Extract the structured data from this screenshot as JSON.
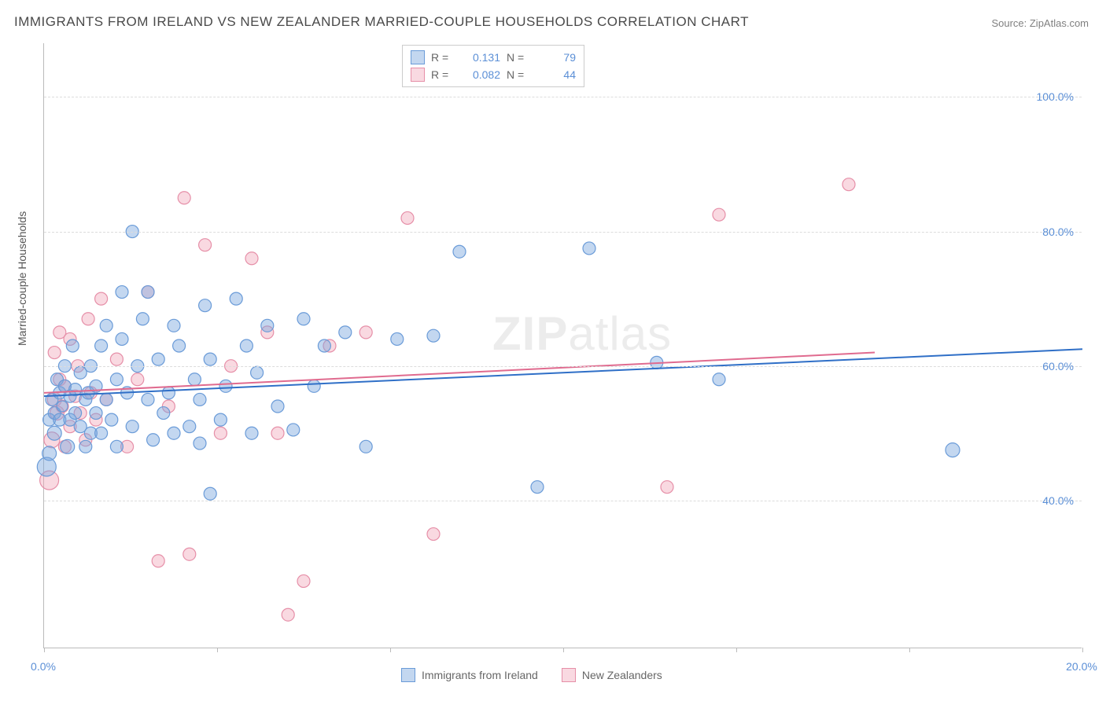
{
  "title": "IMMIGRANTS FROM IRELAND VS NEW ZEALANDER MARRIED-COUPLE HOUSEHOLDS CORRELATION CHART",
  "source": "Source: ZipAtlas.com",
  "watermark_bold": "ZIP",
  "watermark_light": "atlas",
  "y_axis_title": "Married-couple Households",
  "chart": {
    "type": "scatter",
    "xlim": [
      0,
      20
    ],
    "ylim": [
      18,
      108
    ],
    "x_ticks": [
      0,
      3.33,
      6.67,
      10,
      13.33,
      16.67,
      20
    ],
    "x_tick_labels": [
      "0.0%",
      "",
      "",
      "",
      "",
      "",
      "20.0%"
    ],
    "y_ticks": [
      40,
      60,
      80,
      100
    ],
    "y_tick_labels": [
      "40.0%",
      "60.0%",
      "80.0%",
      "100.0%"
    ],
    "grid_color": "#dcdcdc",
    "axis_color": "#bbbbbb",
    "background_color": "#ffffff"
  },
  "series": [
    {
      "name": "Immigrants from Ireland",
      "fill": "rgba(123,167,222,0.45)",
      "stroke": "#6a9bd8",
      "line_stroke": "#2f6fc7",
      "r_value": "0.131",
      "n_value": "79",
      "trend": {
        "x1": 0,
        "y1": 55.5,
        "x2": 20,
        "y2": 62.5
      },
      "points": [
        [
          0.05,
          45.0,
          12
        ],
        [
          0.1,
          47.0,
          9
        ],
        [
          0.1,
          52.0,
          8
        ],
        [
          0.15,
          55.0,
          8
        ],
        [
          0.2,
          53.0,
          8
        ],
        [
          0.2,
          50.0,
          9
        ],
        [
          0.25,
          58.0,
          8
        ],
        [
          0.3,
          52.0,
          8
        ],
        [
          0.3,
          56.0,
          8
        ],
        [
          0.35,
          54.0,
          7
        ],
        [
          0.4,
          57.0,
          8
        ],
        [
          0.4,
          60.0,
          8
        ],
        [
          0.45,
          48.0,
          9
        ],
        [
          0.5,
          55.5,
          8
        ],
        [
          0.5,
          52.0,
          8
        ],
        [
          0.55,
          63.0,
          8
        ],
        [
          0.6,
          56.5,
          8
        ],
        [
          0.6,
          53.0,
          8
        ],
        [
          0.7,
          51.0,
          8
        ],
        [
          0.7,
          59.0,
          8
        ],
        [
          0.8,
          55.0,
          8
        ],
        [
          0.8,
          48.0,
          8
        ],
        [
          0.85,
          56.0,
          8
        ],
        [
          0.9,
          50.0,
          8
        ],
        [
          0.9,
          60.0,
          8
        ],
        [
          1.0,
          53.0,
          8
        ],
        [
          1.0,
          57.0,
          8
        ],
        [
          1.1,
          63.0,
          8
        ],
        [
          1.1,
          50.0,
          8
        ],
        [
          1.2,
          55.0,
          8
        ],
        [
          1.2,
          66.0,
          8
        ],
        [
          1.3,
          52.0,
          8
        ],
        [
          1.4,
          58.0,
          8
        ],
        [
          1.4,
          48.0,
          8
        ],
        [
          1.5,
          71.0,
          8
        ],
        [
          1.5,
          64.0,
          8
        ],
        [
          1.6,
          56.0,
          8
        ],
        [
          1.7,
          80.0,
          8
        ],
        [
          1.7,
          51.0,
          8
        ],
        [
          1.8,
          60.0,
          8
        ],
        [
          1.9,
          67.0,
          8
        ],
        [
          2.0,
          55.0,
          8
        ],
        [
          2.0,
          71.0,
          8
        ],
        [
          2.1,
          49.0,
          8
        ],
        [
          2.2,
          61.0,
          8
        ],
        [
          2.3,
          53.0,
          8
        ],
        [
          2.4,
          56.0,
          8
        ],
        [
          2.5,
          50.0,
          8
        ],
        [
          2.5,
          66.0,
          8
        ],
        [
          2.6,
          63.0,
          8
        ],
        [
          2.8,
          51.0,
          8
        ],
        [
          2.9,
          58.0,
          8
        ],
        [
          3.0,
          48.5,
          8
        ],
        [
          3.0,
          55.0,
          8
        ],
        [
          3.1,
          69.0,
          8
        ],
        [
          3.2,
          61.0,
          8
        ],
        [
          3.2,
          41.0,
          8
        ],
        [
          3.4,
          52.0,
          8
        ],
        [
          3.5,
          57.0,
          8
        ],
        [
          3.7,
          70.0,
          8
        ],
        [
          3.9,
          63.0,
          8
        ],
        [
          4.0,
          50.0,
          8
        ],
        [
          4.1,
          59.0,
          8
        ],
        [
          4.3,
          66.0,
          8
        ],
        [
          4.5,
          54.0,
          8
        ],
        [
          4.8,
          50.5,
          8
        ],
        [
          5.0,
          67.0,
          8
        ],
        [
          5.2,
          57.0,
          8
        ],
        [
          5.4,
          63.0,
          8
        ],
        [
          5.8,
          65.0,
          8
        ],
        [
          6.2,
          48.0,
          8
        ],
        [
          6.8,
          64.0,
          8
        ],
        [
          7.5,
          64.5,
          8
        ],
        [
          8.0,
          77.0,
          8
        ],
        [
          9.5,
          42.0,
          8
        ],
        [
          10.5,
          77.5,
          8
        ],
        [
          11.8,
          60.5,
          8
        ],
        [
          13.0,
          58.0,
          8
        ],
        [
          17.5,
          47.5,
          9
        ]
      ]
    },
    {
      "name": "New Zealanders",
      "fill": "rgba(240,160,180,0.40)",
      "stroke": "#e68fa8",
      "line_stroke": "#e06b8f",
      "r_value": "0.082",
      "n_value": "44",
      "trend": {
        "x1": 0,
        "y1": 56.0,
        "x2": 16,
        "y2": 62.0
      },
      "points": [
        [
          0.1,
          43.0,
          12
        ],
        [
          0.15,
          49.0,
          10
        ],
        [
          0.2,
          55.0,
          9
        ],
        [
          0.2,
          62.0,
          8
        ],
        [
          0.25,
          53.0,
          9
        ],
        [
          0.3,
          58.0,
          8
        ],
        [
          0.3,
          65.0,
          8
        ],
        [
          0.35,
          54.0,
          8
        ],
        [
          0.4,
          48.0,
          8
        ],
        [
          0.4,
          57.0,
          8
        ],
        [
          0.5,
          51.0,
          8
        ],
        [
          0.5,
          64.0,
          8
        ],
        [
          0.6,
          55.5,
          8
        ],
        [
          0.65,
          60.0,
          8
        ],
        [
          0.7,
          53.0,
          8
        ],
        [
          0.8,
          49.0,
          8
        ],
        [
          0.85,
          67.0,
          8
        ],
        [
          0.9,
          56.0,
          8
        ],
        [
          1.0,
          52.0,
          8
        ],
        [
          1.1,
          70.0,
          8
        ],
        [
          1.2,
          55.0,
          8
        ],
        [
          1.4,
          61.0,
          8
        ],
        [
          1.6,
          48.0,
          8
        ],
        [
          1.8,
          58.0,
          8
        ],
        [
          2.0,
          71.0,
          8
        ],
        [
          2.2,
          31.0,
          8
        ],
        [
          2.4,
          54.0,
          8
        ],
        [
          2.7,
          85.0,
          8
        ],
        [
          2.8,
          32.0,
          8
        ],
        [
          3.1,
          78.0,
          8
        ],
        [
          3.4,
          50.0,
          8
        ],
        [
          3.6,
          60.0,
          8
        ],
        [
          4.0,
          76.0,
          8
        ],
        [
          4.3,
          65.0,
          8
        ],
        [
          4.5,
          50.0,
          8
        ],
        [
          4.7,
          23.0,
          8
        ],
        [
          5.0,
          28.0,
          8
        ],
        [
          5.5,
          63.0,
          8
        ],
        [
          6.2,
          65.0,
          8
        ],
        [
          7.0,
          82.0,
          8
        ],
        [
          7.5,
          35.0,
          8
        ],
        [
          12.0,
          42.0,
          8
        ],
        [
          13.0,
          82.5,
          8
        ],
        [
          15.5,
          87.0,
          8
        ]
      ]
    }
  ],
  "legend_top": {
    "title_r": "R  =",
    "title_n": "N  ="
  },
  "legend_bottom": {
    "label1": "Immigrants from Ireland",
    "label2": "New Zealanders"
  }
}
